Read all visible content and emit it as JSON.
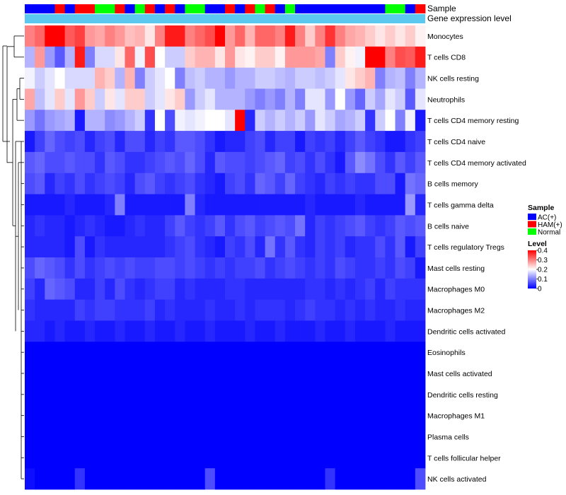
{
  "chart_data": {
    "type": "heatmap",
    "annotations": {
      "sample_label": "Sample",
      "expression_label": "Gene expression level",
      "sample_columns": [
        "AC(+)",
        "AC(+)",
        "AC(+)",
        "HAM(+)",
        "AC(+)",
        "HAM(+)",
        "HAM(+)",
        "Normal",
        "Normal",
        "HAM(+)",
        "AC(+)",
        "Normal",
        "HAM(+)",
        "AC(+)",
        "HAM(+)",
        "AC(+)",
        "Normal",
        "Normal",
        "AC(+)",
        "AC(+)",
        "HAM(+)",
        "AC(+)",
        "HAM(+)",
        "Normal",
        "HAM(+)",
        "AC(+)",
        "Normal",
        "AC(+)",
        "AC(+)",
        "AC(+)",
        "AC(+)",
        "AC(+)",
        "AC(+)",
        "AC(+)",
        "AC(+)",
        "AC(+)",
        "Normal",
        "Normal",
        "AC(+)",
        "HAM(+)"
      ]
    },
    "rows": [
      "Monocytes",
      "T cells CD8",
      "NK cells resting",
      "Neutrophils",
      "T cells CD4 memory resting",
      "T cells CD4 naive",
      "T cells CD4 memory activated",
      "B cells memory",
      "T cells gamma delta",
      "B cells naive",
      "T cells regulatory  Tregs",
      "Mast cells resting",
      "Macrophages M0",
      "Macrophages M2",
      "Dendritic cells activated",
      "Eosinophils",
      "Mast cells activated",
      "Dendritic cells resting",
      "Macrophages M1",
      "Plasma cells",
      "T cells follicular helper",
      "NK cells activated"
    ],
    "values": [
      [
        0.3,
        0.32,
        0.4,
        0.4,
        0.33,
        0.35,
        0.28,
        0.27,
        0.3,
        0.28,
        0.25,
        0.26,
        0.22,
        0.3,
        0.38,
        0.38,
        0.3,
        0.32,
        0.34,
        0.4,
        0.28,
        0.32,
        0.26,
        0.32,
        0.32,
        0.3,
        0.38,
        0.3,
        0.24,
        0.3,
        0.36,
        0.3,
        0.27,
        0.26,
        0.24,
        0.22,
        0.24,
        0.22,
        0.24,
        0.21
      ],
      [
        0.14,
        0.28,
        0.12,
        0.07,
        0.14,
        0.38,
        0.1,
        0.17,
        0.17,
        0.22,
        0.32,
        0.19,
        0.34,
        0.2,
        0.16,
        0.16,
        0.24,
        0.26,
        0.26,
        0.22,
        0.28,
        0.22,
        0.21,
        0.24,
        0.24,
        0.21,
        0.28,
        0.28,
        0.28,
        0.27,
        0.1,
        0.24,
        0.21,
        0.19,
        0.4,
        0.4,
        0.3,
        0.34,
        0.33,
        0.38
      ],
      [
        0.19,
        0.16,
        0.18,
        0.2,
        0.17,
        0.17,
        0.17,
        0.26,
        0.24,
        0.14,
        0.26,
        0.1,
        0.16,
        0.18,
        0.2,
        0.1,
        0.15,
        0.16,
        0.14,
        0.14,
        0.12,
        0.14,
        0.14,
        0.16,
        0.16,
        0.15,
        0.14,
        0.16,
        0.16,
        0.15,
        0.16,
        0.18,
        0.22,
        0.24,
        0.26,
        0.1,
        0.14,
        0.15,
        0.1,
        0.14
      ],
      [
        0.27,
        0.15,
        0.18,
        0.24,
        0.18,
        0.28,
        0.24,
        0.16,
        0.22,
        0.18,
        0.24,
        0.24,
        0.16,
        0.18,
        0.22,
        0.24,
        0.12,
        0.16,
        0.18,
        0.14,
        0.14,
        0.14,
        0.12,
        0.1,
        0.12,
        0.1,
        0.14,
        0.1,
        0.18,
        0.18,
        0.12,
        0.2,
        0.12,
        0.08,
        0.16,
        0.13,
        0.18,
        0.16,
        0.07,
        0.18
      ],
      [
        0.12,
        0.09,
        0.12,
        0.13,
        0.14,
        0.02,
        0.14,
        0.14,
        0.11,
        0.12,
        0.14,
        0.16,
        0.04,
        0.2,
        0.06,
        0.19,
        0.18,
        0.19,
        0.2,
        0.2,
        0.18,
        0.4,
        0.03,
        0.16,
        0.14,
        0.16,
        0.14,
        0.16,
        0.12,
        0.18,
        0.16,
        0.13,
        0.14,
        0.16,
        0.04,
        0.16,
        0.2,
        0.1,
        0.19,
        0.02
      ],
      [
        0.02,
        0.05,
        0.08,
        0.06,
        0.05,
        0.06,
        0.03,
        0.05,
        0.06,
        0.03,
        0.06,
        0.06,
        0.03,
        0.05,
        0.04,
        0.07,
        0.07,
        0.06,
        0.04,
        0.02,
        0.03,
        0.03,
        0.05,
        0.06,
        0.03,
        0.05,
        0.05,
        0.02,
        0.05,
        0.04,
        0.05,
        0.03,
        0.05,
        0.07,
        0.05,
        0.04,
        0.02,
        0.02,
        0.04,
        0.05
      ],
      [
        0.07,
        0.08,
        0.06,
        0.06,
        0.07,
        0.06,
        0.06,
        0.04,
        0.07,
        0.06,
        0.04,
        0.04,
        0.05,
        0.06,
        0.07,
        0.06,
        0.08,
        0.06,
        0.03,
        0.07,
        0.06,
        0.06,
        0.05,
        0.06,
        0.07,
        0.08,
        0.05,
        0.06,
        0.04,
        0.06,
        0.04,
        0.02,
        0.07,
        0.11,
        0.09,
        0.06,
        0.04,
        0.07,
        0.05,
        0.07
      ],
      [
        0.06,
        0.07,
        0.03,
        0.05,
        0.04,
        0.06,
        0.04,
        0.05,
        0.06,
        0.05,
        0.03,
        0.06,
        0.07,
        0.05,
        0.04,
        0.05,
        0.06,
        0.04,
        0.03,
        0.02,
        0.05,
        0.06,
        0.04,
        0.08,
        0.07,
        0.05,
        0.08,
        0.05,
        0.04,
        0.03,
        0.05,
        0.04,
        0.05,
        0.04,
        0.04,
        0.06,
        0.06,
        0.02,
        0.09,
        0.08
      ],
      [
        0.02,
        0.02,
        0.02,
        0.02,
        0.03,
        0.02,
        0.02,
        0.02,
        0.03,
        0.1,
        0.02,
        0.02,
        0.02,
        0.02,
        0.02,
        0.02,
        0.1,
        0.03,
        0.02,
        0.02,
        0.02,
        0.02,
        0.02,
        0.02,
        0.02,
        0.02,
        0.02,
        0.02,
        0.03,
        0.02,
        0.02,
        0.02,
        0.02,
        0.03,
        0.02,
        0.02,
        0.02,
        0.02,
        0.12,
        0.03
      ],
      [
        0.03,
        0.04,
        0.03,
        0.03,
        0.02,
        0.03,
        0.04,
        0.03,
        0.02,
        0.02,
        0.03,
        0.04,
        0.03,
        0.03,
        0.05,
        0.07,
        0.05,
        0.04,
        0.05,
        0.07,
        0.04,
        0.06,
        0.07,
        0.05,
        0.06,
        0.07,
        0.06,
        0.09,
        0.03,
        0.05,
        0.04,
        0.05,
        0.06,
        0.07,
        0.05,
        0.04,
        0.05,
        0.07,
        0.06,
        0.07
      ],
      [
        0.03,
        0.03,
        0.03,
        0.03,
        0.02,
        0.06,
        0.02,
        0.04,
        0.03,
        0.03,
        0.03,
        0.03,
        0.03,
        0.03,
        0.04,
        0.05,
        0.06,
        0.04,
        0.03,
        0.02,
        0.05,
        0.04,
        0.06,
        0.03,
        0.09,
        0.04,
        0.07,
        0.04,
        0.03,
        0.05,
        0.04,
        0.05,
        0.03,
        0.04,
        0.04,
        0.06,
        0.04,
        0.07,
        0.02,
        0.05
      ],
      [
        0.06,
        0.08,
        0.07,
        0.06,
        0.04,
        0.06,
        0.04,
        0.05,
        0.06,
        0.05,
        0.06,
        0.05,
        0.05,
        0.06,
        0.06,
        0.05,
        0.06,
        0.05,
        0.04,
        0.05,
        0.04,
        0.05,
        0.05,
        0.06,
        0.04,
        0.05,
        0.06,
        0.05,
        0.04,
        0.05,
        0.04,
        0.06,
        0.05,
        0.04,
        0.04,
        0.05,
        0.04,
        0.06,
        0.05,
        0.02
      ],
      [
        0.05,
        0.03,
        0.08,
        0.07,
        0.06,
        0.03,
        0.03,
        0.05,
        0.03,
        0.06,
        0.04,
        0.03,
        0.04,
        0.05,
        0.05,
        0.03,
        0.04,
        0.03,
        0.03,
        0.03,
        0.04,
        0.04,
        0.03,
        0.03,
        0.03,
        0.03,
        0.03,
        0.03,
        0.04,
        0.04,
        0.03,
        0.04,
        0.03,
        0.04,
        0.05,
        0.03,
        0.05,
        0.04,
        0.04,
        0.04
      ],
      [
        0.04,
        0.03,
        0.03,
        0.03,
        0.03,
        0.05,
        0.04,
        0.05,
        0.05,
        0.04,
        0.04,
        0.04,
        0.05,
        0.03,
        0.04,
        0.03,
        0.03,
        0.03,
        0.04,
        0.03,
        0.03,
        0.04,
        0.03,
        0.04,
        0.04,
        0.04,
        0.03,
        0.04,
        0.05,
        0.04,
        0.04,
        0.03,
        0.04,
        0.03,
        0.04,
        0.03,
        0.03,
        0.04,
        0.03,
        0.03
      ],
      [
        0.03,
        0.03,
        0.02,
        0.03,
        0.02,
        0.02,
        0.03,
        0.02,
        0.02,
        0.03,
        0.02,
        0.02,
        0.03,
        0.02,
        0.02,
        0.03,
        0.02,
        0.02,
        0.03,
        0.02,
        0.02,
        0.02,
        0.03,
        0.02,
        0.02,
        0.03,
        0.02,
        0.02,
        0.02,
        0.03,
        0.02,
        0.02,
        0.03,
        0.02,
        0.02,
        0.02,
        0.03,
        0.02,
        0.02,
        0.02
      ],
      [
        0,
        0,
        0,
        0,
        0,
        0,
        0,
        0,
        0,
        0,
        0,
        0,
        0,
        0,
        0,
        0,
        0,
        0,
        0,
        0,
        0,
        0,
        0,
        0,
        0,
        0,
        0,
        0,
        0,
        0,
        0,
        0,
        0,
        0,
        0,
        0,
        0,
        0,
        0,
        0
      ],
      [
        0,
        0,
        0,
        0,
        0,
        0,
        0,
        0,
        0,
        0,
        0,
        0,
        0,
        0,
        0,
        0,
        0,
        0,
        0,
        0,
        0,
        0,
        0,
        0,
        0,
        0,
        0,
        0,
        0,
        0,
        0,
        0,
        0,
        0,
        0,
        0,
        0,
        0,
        0,
        0
      ],
      [
        0,
        0,
        0,
        0,
        0,
        0,
        0,
        0,
        0,
        0,
        0,
        0,
        0,
        0,
        0,
        0,
        0,
        0,
        0,
        0,
        0,
        0,
        0,
        0,
        0,
        0,
        0,
        0,
        0,
        0,
        0,
        0,
        0,
        0,
        0,
        0,
        0,
        0,
        0,
        0
      ],
      [
        0,
        0,
        0,
        0,
        0,
        0,
        0,
        0,
        0,
        0,
        0,
        0,
        0,
        0,
        0,
        0,
        0,
        0,
        0,
        0,
        0,
        0,
        0,
        0,
        0,
        0,
        0,
        0,
        0,
        0,
        0,
        0,
        0,
        0,
        0,
        0,
        0,
        0,
        0,
        0
      ],
      [
        0,
        0,
        0,
        0,
        0,
        0,
        0,
        0,
        0,
        0,
        0,
        0,
        0,
        0,
        0,
        0,
        0,
        0,
        0,
        0,
        0,
        0,
        0,
        0,
        0,
        0,
        0,
        0,
        0,
        0,
        0,
        0,
        0,
        0,
        0,
        0,
        0,
        0,
        0,
        0
      ],
      [
        0,
        0,
        0,
        0,
        0,
        0,
        0,
        0,
        0,
        0,
        0,
        0,
        0,
        0,
        0,
        0,
        0,
        0,
        0,
        0,
        0,
        0,
        0,
        0,
        0,
        0,
        0,
        0,
        0,
        0,
        0,
        0,
        0,
        0,
        0,
        0,
        0,
        0,
        0,
        0
      ],
      [
        0.01,
        0,
        0,
        0,
        0,
        0.04,
        0,
        0,
        0,
        0,
        0,
        0,
        0,
        0,
        0,
        0,
        0,
        0,
        0.06,
        0,
        0,
        0,
        0,
        0,
        0,
        0,
        0,
        0,
        0,
        0,
        0.04,
        0,
        0,
        0,
        0,
        0,
        0,
        0,
        0,
        0.06
      ]
    ],
    "color_scale": {
      "low": "#0000ff",
      "mid": "#ffffff",
      "high": "#ff0000",
      "mid_value": 0.2,
      "range": [
        0,
        0.4
      ]
    },
    "legend": {
      "sample_title": "Sample",
      "sample_entries": [
        {
          "label": "AC(+)",
          "color": "#0000ff"
        },
        {
          "label": "HAM(+)",
          "color": "#ff0000"
        },
        {
          "label": "Normal",
          "color": "#00ff00"
        }
      ],
      "level_title": "Level",
      "level_ticks": [
        "0.4",
        "0.3",
        "0.2",
        "0.1",
        "0"
      ],
      "level_tick_values": [
        0.4,
        0.3,
        0.2,
        0.1,
        0
      ],
      "placement": "right"
    },
    "expression_bar_color": "#5bc8f0",
    "dendrogram": "left, hierarchical clustering of rows"
  }
}
